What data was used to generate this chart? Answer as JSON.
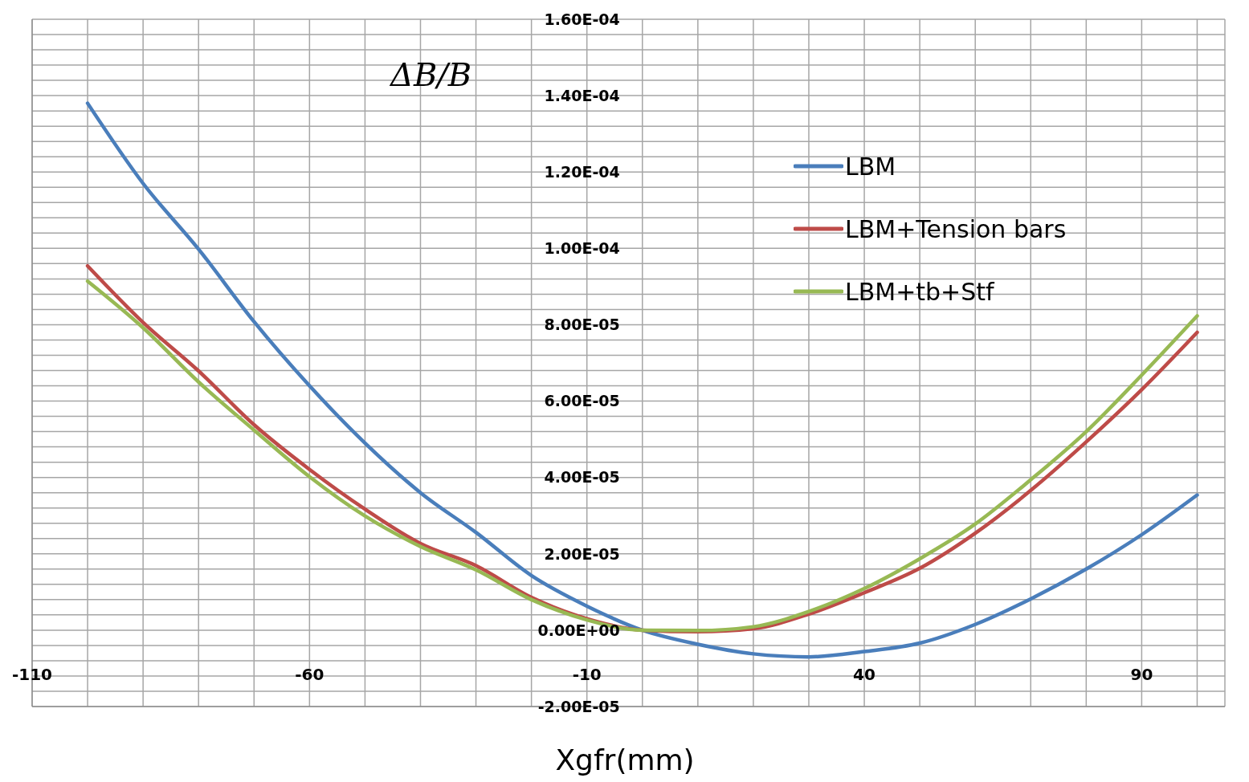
{
  "chart_data": {
    "type": "line",
    "ylabel": "ΔB/B",
    "xlabel": "Xgfr(mm)",
    "x": [
      -100,
      -90,
      -80,
      -70,
      -60,
      -50,
      -40,
      -30,
      -20,
      -10,
      0,
      10,
      20,
      30,
      40,
      50,
      60,
      70,
      80,
      90,
      100
    ],
    "series": [
      {
        "name": "LBM",
        "color": "#4a7ebb",
        "values": [
          0.000138,
          0.000117,
          9.98e-05,
          8.08e-05,
          6.4e-05,
          4.9e-05,
          3.6e-05,
          2.56e-05,
          1.43e-05,
          6.3e-06,
          0,
          -3.7e-06,
          -6.2e-06,
          -7e-06,
          -5.6e-06,
          -3.4e-06,
          1.5e-06,
          8.2e-06,
          1.6e-05,
          2.5e-05,
          3.54e-05
        ]
      },
      {
        "name": "LBM+Tension bars",
        "color": "#be4b48",
        "values": [
          9.54e-05,
          8.06e-05,
          6.79e-05,
          5.38e-05,
          4.21e-05,
          3.17e-05,
          2.27e-05,
          1.69e-05,
          8.6e-06,
          3e-06,
          0,
          -4e-07,
          4e-07,
          4.2e-06,
          9.8e-06,
          1.62e-05,
          2.54e-05,
          3.66e-05,
          4.93e-05,
          6.3e-05,
          7.8e-05
        ]
      },
      {
        "name": "LBM+tb+Stf",
        "color": "#98b954",
        "values": [
          9.14e-05,
          7.92e-05,
          6.5e-05,
          5.24e-05,
          4.02e-05,
          2.99e-05,
          2.19e-05,
          1.58e-05,
          8e-06,
          2.7e-06,
          0,
          -1e-07,
          9e-07,
          4.9e-06,
          1.09e-05,
          1.87e-05,
          2.78e-05,
          3.94e-05,
          5.2e-05,
          6.68e-05,
          8.23e-05
        ]
      }
    ],
    "xlim": [
      -110,
      105
    ],
    "xticks": [
      -110,
      {
        "value": -100,
        "label": null
      },
      {
        "value": -90,
        "label": null
      },
      {
        "value": -80,
        "label": null
      },
      {
        "value": -70,
        "label": null
      },
      -60,
      {
        "value": -50,
        "label": null
      },
      {
        "value": -40,
        "label": null
      },
      {
        "value": -30,
        "label": null
      },
      {
        "value": -20,
        "label": null
      },
      -10,
      {
        "value": 0,
        "label": null
      },
      {
        "value": 10,
        "label": null
      },
      {
        "value": 20,
        "label": null
      },
      {
        "value": 30,
        "label": null
      },
      40,
      {
        "value": 50,
        "label": null
      },
      {
        "value": 60,
        "label": null
      },
      {
        "value": 70,
        "label": null
      },
      {
        "value": 80,
        "label": null
      },
      90,
      {
        "value": 100,
        "label": null
      }
    ],
    "ylim": [
      -2e-05,
      0.00016
    ],
    "yticks": [
      {
        "value": -2e-05,
        "label": "-2.00E-05"
      },
      {
        "value": -1.6e-05,
        "label": null
      },
      {
        "value": -1.2e-05,
        "label": null
      },
      {
        "value": -8e-06,
        "label": null
      },
      {
        "value": -4e-06,
        "label": null
      },
      {
        "value": 0,
        "label": "0.00E+00"
      },
      {
        "value": 4e-06,
        "label": null
      },
      {
        "value": 8e-06,
        "label": null
      },
      {
        "value": 1.2e-05,
        "label": null
      },
      {
        "value": 1.6e-05,
        "label": null
      },
      {
        "value": 2e-05,
        "label": "2.00E-05"
      },
      {
        "value": 2.4e-05,
        "label": null
      },
      {
        "value": 2.8e-05,
        "label": null
      },
      {
        "value": 3.2e-05,
        "label": null
      },
      {
        "value": 3.6e-05,
        "label": null
      },
      {
        "value": 4e-05,
        "label": "4.00E-05"
      },
      {
        "value": 4.4e-05,
        "label": null
      },
      {
        "value": 4.8e-05,
        "label": null
      },
      {
        "value": 5.2e-05,
        "label": null
      },
      {
        "value": 5.6e-05,
        "label": null
      },
      {
        "value": 6e-05,
        "label": "6.00E-05"
      },
      {
        "value": 6.4e-05,
        "label": null
      },
      {
        "value": 6.8e-05,
        "label": null
      },
      {
        "value": 7.2e-05,
        "label": null
      },
      {
        "value": 7.6e-05,
        "label": null
      },
      {
        "value": 8e-05,
        "label": "8.00E-05"
      },
      {
        "value": 8.4e-05,
        "label": null
      },
      {
        "value": 8.8e-05,
        "label": null
      },
      {
        "value": 9.2e-05,
        "label": null
      },
      {
        "value": 9.6e-05,
        "label": null
      },
      {
        "value": 0.0001,
        "label": "1.00E-04"
      },
      {
        "value": 0.000104,
        "label": null
      },
      {
        "value": 0.000108,
        "label": null
      },
      {
        "value": 0.000112,
        "label": null
      },
      {
        "value": 0.000116,
        "label": null
      },
      {
        "value": 0.00012,
        "label": "1.20E-04"
      },
      {
        "value": 0.000124,
        "label": null
      },
      {
        "value": 0.000128,
        "label": null
      },
      {
        "value": 0.000132,
        "label": null
      },
      {
        "value": 0.000136,
        "label": null
      },
      {
        "value": 0.00014,
        "label": "1.40E-04"
      },
      {
        "value": 0.000144,
        "label": null
      },
      {
        "value": 0.000148,
        "label": null
      },
      {
        "value": 0.000152,
        "label": null
      },
      {
        "value": 0.000156,
        "label": null
      },
      {
        "value": 0.00016,
        "label": "1.60E-04"
      }
    ],
    "grid": true,
    "legend": "top right",
    "marker": "none",
    "line_style": "solid"
  }
}
